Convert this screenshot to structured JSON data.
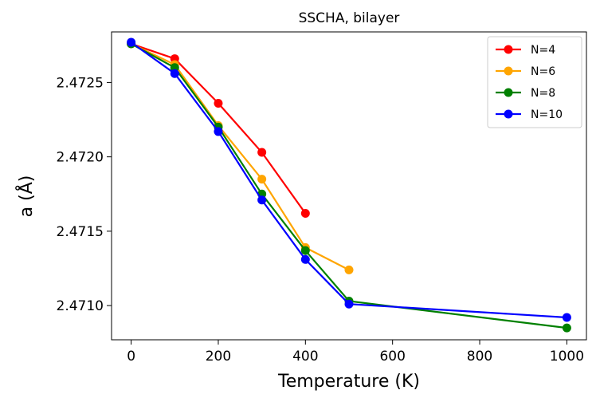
{
  "chart_data": {
    "type": "line",
    "title": "SSCHA, bilayer",
    "xlabel": "Temperature (K)",
    "ylabel": "a (Å)",
    "xlim": [
      -45,
      1045
    ],
    "ylim": [
      2.47077,
      2.47284
    ],
    "xticks": [
      0,
      200,
      400,
      600,
      800,
      1000
    ],
    "xtick_labels": [
      "0",
      "200",
      "400",
      "600",
      "800",
      "1000"
    ],
    "yticks": [
      2.471,
      2.4715,
      2.472,
      2.4725
    ],
    "ytick_labels": [
      "2.4710",
      "2.4715",
      "2.4720",
      "2.4725"
    ],
    "grid": false,
    "legend": "top-right",
    "series": [
      {
        "name": "N=4",
        "color": "#ff0000",
        "x": [
          0,
          100,
          200,
          300,
          400
        ],
        "y": [
          2.47276,
          2.47266,
          2.47236,
          2.47203,
          2.47162
        ]
      },
      {
        "name": "N=6",
        "color": "#ffa500",
        "x": [
          0,
          100,
          200,
          300,
          400,
          500
        ],
        "y": [
          2.47276,
          2.47262,
          2.47221,
          2.47185,
          2.47139,
          2.47124
        ]
      },
      {
        "name": "N=8",
        "color": "#008000",
        "x": [
          0,
          100,
          200,
          300,
          400,
          500,
          1000
        ],
        "y": [
          2.47276,
          2.4726,
          2.4722,
          2.47175,
          2.47137,
          2.47103,
          2.47085
        ]
      },
      {
        "name": "N=10",
        "color": "#0000ff",
        "x": [
          0,
          100,
          200,
          300,
          400,
          500,
          1000
        ],
        "y": [
          2.47277,
          2.47256,
          2.47217,
          2.47171,
          2.47131,
          2.47101,
          2.47092
        ]
      }
    ]
  }
}
